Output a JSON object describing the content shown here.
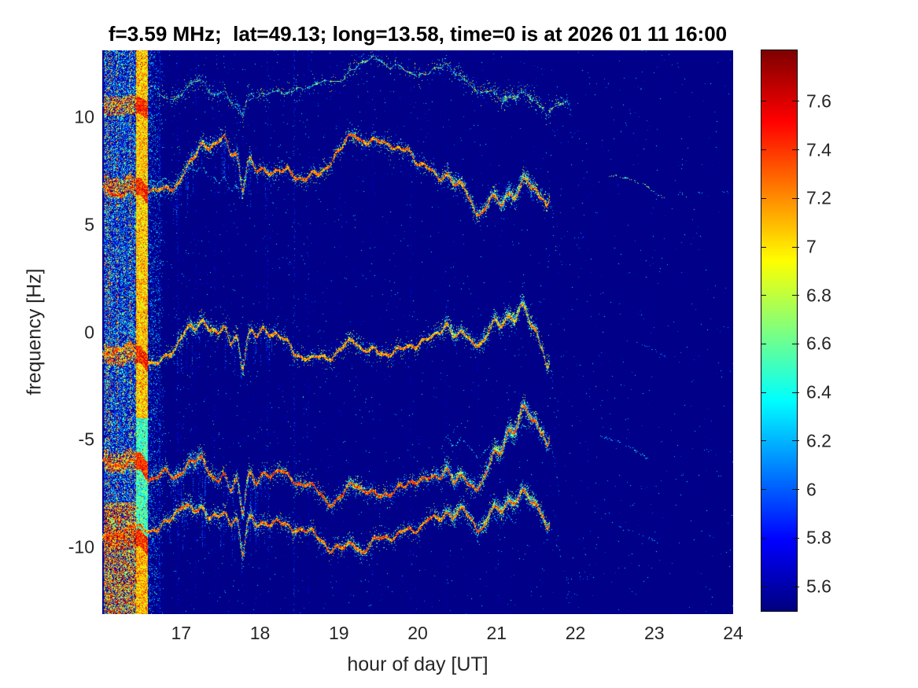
{
  "figure": {
    "title": "f=3.59 MHz;  lat=49.13; long=13.58, time=0 is at 2026 01 11 16:00"
  },
  "axes": {
    "xlabel": "hour of day [UT]",
    "ylabel": "frequency [Hz]",
    "xlim": [
      16,
      24
    ],
    "ylim": [
      -13.1,
      13.1
    ],
    "xticks": [
      17,
      18,
      19,
      20,
      21,
      22,
      23,
      24
    ],
    "yticks": [
      10,
      5,
      0,
      -5,
      -10
    ]
  },
  "colorbar": {
    "tick_labels": [
      "7.6",
      "7.4",
      "7.2",
      "7",
      "6.8",
      "6.6",
      "6.4",
      "6.2",
      "6",
      "5.8",
      "5.6"
    ],
    "vmin": 5.5,
    "vmax": 7.81
  },
  "chart_data": {
    "type": "heatmap",
    "subtype": "doppler-spectrogram",
    "colormap": "jet",
    "title": "f=3.59 MHz;  lat=49.13; long=13.58, time=0 is at 2026 01 11 16:00",
    "xlabel": "hour of day [UT]",
    "ylabel": "frequency [Hz]",
    "xlim": [
      16,
      24
    ],
    "ylim": [
      -13.1,
      13.1
    ],
    "value_range": [
      5.5,
      7.81
    ],
    "background_value": 5.52,
    "traces": [
      {
        "name": "trace-plus10",
        "base_hz": 10.45,
        "scale": 0.5,
        "strength": "weak",
        "t_start": 16.0,
        "t_end": 21.9,
        "core_v": [
          6.0,
          7.05
        ],
        "halo": 0.35,
        "gap_p": 0.09,
        "tail": {
          "dt": 0.06,
          "df": -0.8
        }
      },
      {
        "name": "trace-plus6",
        "base_hz": 6.62,
        "scale": 1.0,
        "strength": "strong",
        "t_start": 16.0,
        "t_end": 21.67,
        "core_v": [
          6.9,
          7.8
        ],
        "halo": 1.0,
        "gap_p": 0.0,
        "tail": {
          "dt": 0.1,
          "df": -2.6
        }
      },
      {
        "name": "trace-minus1",
        "base_hz": -1.18,
        "scale": 1.0,
        "strength": "strong",
        "t_start": 16.0,
        "t_end": 21.67,
        "core_v": [
          6.8,
          7.7
        ],
        "halo": 0.9,
        "gap_p": 0.0,
        "tail": {
          "dt": 0.14,
          "df": -3.6
        }
      },
      {
        "name": "trace-minus6",
        "base_hz": -6.15,
        "scale": 1.15,
        "strength": "strong",
        "t_start": 16.0,
        "t_end": 21.67,
        "core_v": [
          7.0,
          7.81
        ],
        "halo": 1.25,
        "gap_p": 0.0,
        "tail": {
          "dt": 0.16,
          "df": -3.4
        }
      },
      {
        "name": "trace-minus10",
        "base_hz": -9.7,
        "scale": 1.05,
        "strength": "strong",
        "t_start": 16.0,
        "t_end": 21.67,
        "core_v": [
          6.9,
          7.8
        ],
        "halo": 1.1,
        "gap_p": 0.0,
        "tail": {
          "dt": 0.25,
          "df": -2.9
        }
      }
    ],
    "doppler": {
      "sines": [
        {
          "amp": 0.18,
          "period": 1.05,
          "phase": 0.0
        },
        {
          "amp": 0.12,
          "period": 0.38,
          "phase": 1.2
        },
        {
          "amp": 0.07,
          "period": 0.155,
          "phase": 0.5
        }
      ],
      "events": [
        {
          "t": 17.05,
          "w": 0.1,
          "a": 0.35
        },
        {
          "t": 17.27,
          "w": 0.08,
          "a": 0.32
        },
        {
          "t": 17.47,
          "w": 0.06,
          "a": -0.28
        },
        {
          "t": 17.62,
          "w": 0.05,
          "a": -0.55
        },
        {
          "t": 17.78,
          "w": 0.045,
          "a": -1.5
        },
        {
          "t": 17.95,
          "w": 0.05,
          "a": -0.35
        },
        {
          "t": 18.75,
          "w": 0.3,
          "a": -0.18
        },
        {
          "t": 19.2,
          "w": 0.09,
          "a": 0.45
        },
        {
          "t": 20.38,
          "w": 0.07,
          "a": 0.5
        },
        {
          "t": 20.57,
          "w": 0.06,
          "a": 0.3
        },
        {
          "t": 20.95,
          "w": 0.08,
          "a": 0.55
        },
        {
          "t": 21.15,
          "w": 0.09,
          "a": 0.75
        },
        {
          "t": 21.35,
          "w": 0.08,
          "a": 0.9
        },
        {
          "t": 21.5,
          "w": 0.05,
          "a": 0.5
        },
        {
          "t": 21.64,
          "w": 0.04,
          "a": -0.6
        }
      ],
      "halo_events": [
        {
          "t": 17.15,
          "w": 0.25,
          "a": 1.3
        },
        {
          "t": 17.8,
          "w": 0.12,
          "a": 1.8
        },
        {
          "t": 19.2,
          "w": 0.15,
          "a": 0.8
        },
        {
          "t": 20.45,
          "w": 0.12,
          "a": 1.2
        },
        {
          "t": 21.2,
          "w": 0.35,
          "a": 1.6
        }
      ],
      "smear_windows": [
        [
          16.85,
          17.32
        ],
        [
          17.5,
          18.15
        ]
      ]
    },
    "companions": [
      {
        "trace_index": 1,
        "t0": 16.6,
        "t1": 17.75,
        "df": 0.55
      },
      {
        "trace_index": 3,
        "t0": 20.3,
        "t1": 21.4,
        "df": 0.6
      },
      {
        "trace_index": 4,
        "t0": 20.4,
        "t1": 21.3,
        "df": 0.55
      }
    ],
    "noise": {
      "ambient_density": 0.012,
      "burst_column": {
        "t0": 16.02,
        "t1": 16.42
      },
      "cal_band": {
        "t0": 16.425,
        "t1": 16.565,
        "f_breaks": [
          -4,
          -9.6
        ],
        "seg_values": [
          6.95,
          6.42,
          7.0
        ]
      },
      "decay_until": 16.8,
      "stripes": [
        [
          16.72,
          0.5,
          0.5
        ],
        [
          16.95,
          0.3,
          0.35
        ],
        [
          17.18,
          0.25,
          0.3
        ],
        [
          17.42,
          0.2,
          0.3
        ],
        [
          18.08,
          0.25,
          0.35
        ],
        [
          18.42,
          0.35,
          0.5
        ],
        [
          18.6,
          0.2,
          0.3
        ],
        [
          19.0,
          0.15,
          0.3
        ],
        [
          19.42,
          0.15,
          0.25
        ],
        [
          19.9,
          0.18,
          0.3
        ],
        [
          20.35,
          0.15,
          0.25
        ],
        [
          20.75,
          0.12,
          0.25
        ],
        [
          21.1,
          0.12,
          0.25
        ]
      ]
    },
    "arcs": [
      {
        "t0": 22.42,
        "f0": 7.3,
        "t1": 23.13,
        "f1": 6.2,
        "bow": 0.25,
        "v_max": 7.25,
        "density": 0.5
      },
      {
        "t0": 23.5,
        "f0": 6.55,
        "t1": 23.68,
        "f1": 6.35,
        "bow": 0.05,
        "v_max": 6.4,
        "density": 0.35
      },
      {
        "t0": 22.62,
        "f0": -0.3,
        "t1": 23.15,
        "f1": -1.15,
        "bow": 0.12,
        "v_max": 6.2,
        "density": 0.35
      },
      {
        "t0": 22.3,
        "f0": -4.8,
        "t1": 22.92,
        "f1": -5.9,
        "bow": 0.15,
        "v_max": 6.5,
        "density": 0.45
      },
      {
        "t0": 22.55,
        "f0": -9.0,
        "t1": 23.12,
        "f1": -10.0,
        "bow": 0.12,
        "v_max": 6.4,
        "density": 0.4
      },
      {
        "t0": 23.55,
        "f0": -9.2,
        "t1": 23.75,
        "f1": -9.55,
        "bow": 0.05,
        "v_max": 6.3,
        "density": 0.35
      },
      {
        "t0": 23.6,
        "f0": -5.4,
        "t1": 23.82,
        "f1": -5.75,
        "bow": 0.05,
        "v_max": 6.3,
        "density": 0.3
      }
    ],
    "specks": [
      {
        "t": 22.05,
        "f": 4.5,
        "n": 6,
        "v": 6.0
      },
      {
        "t": 22.08,
        "f": -11.3,
        "n": 8,
        "v": 6.1
      },
      {
        "t": 21.95,
        "f": -12.2,
        "n": 6,
        "v": 6.0
      },
      {
        "t": 23.9,
        "f": 6.6,
        "n": 4,
        "v": 6.2
      },
      {
        "t": 22.75,
        "f": 10.3,
        "n": 4,
        "v": 6.0
      },
      {
        "t": 23.35,
        "f": 6.45,
        "n": 5,
        "v": 6.3
      }
    ]
  }
}
